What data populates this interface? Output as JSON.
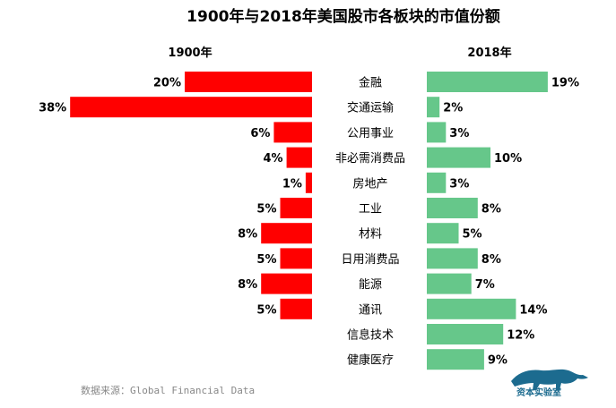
{
  "chart_data": {
    "type": "bar",
    "title": "1900年与2018年美国股市各板块的市值份额",
    "categories": [
      "金融",
      "交通运输",
      "公用事业",
      "非必需消费品",
      "房地产",
      "工业",
      "材料",
      "日用消费品",
      "能源",
      "通讯",
      "信息技术",
      "健康医疗"
    ],
    "series": [
      {
        "name": "1900年",
        "values": [
          20,
          38,
          6,
          4,
          1,
          5,
          8,
          5,
          8,
          5,
          null,
          null
        ],
        "labels": [
          "20%",
          "38%",
          "6%",
          "4%",
          "1%",
          "5%",
          "8%",
          "5%",
          "8%",
          "5%",
          "",
          ""
        ],
        "color": "#ff0000"
      },
      {
        "name": "2018年",
        "values": [
          19,
          2,
          3,
          10,
          3,
          8,
          5,
          8,
          7,
          14,
          12,
          9
        ],
        "labels": [
          "19%",
          "2%",
          "3%",
          "10%",
          "3%",
          "8%",
          "5%",
          "8%",
          "7%",
          "14%",
          "12%",
          "9%"
        ],
        "color": "#66c78a"
      }
    ],
    "unit": "%",
    "grid": false
  },
  "source": "数据来源：Global Financial Data",
  "logo": {
    "text": "资本实验室",
    "icon": "leopard-icon",
    "color": "#1c6b8f"
  }
}
